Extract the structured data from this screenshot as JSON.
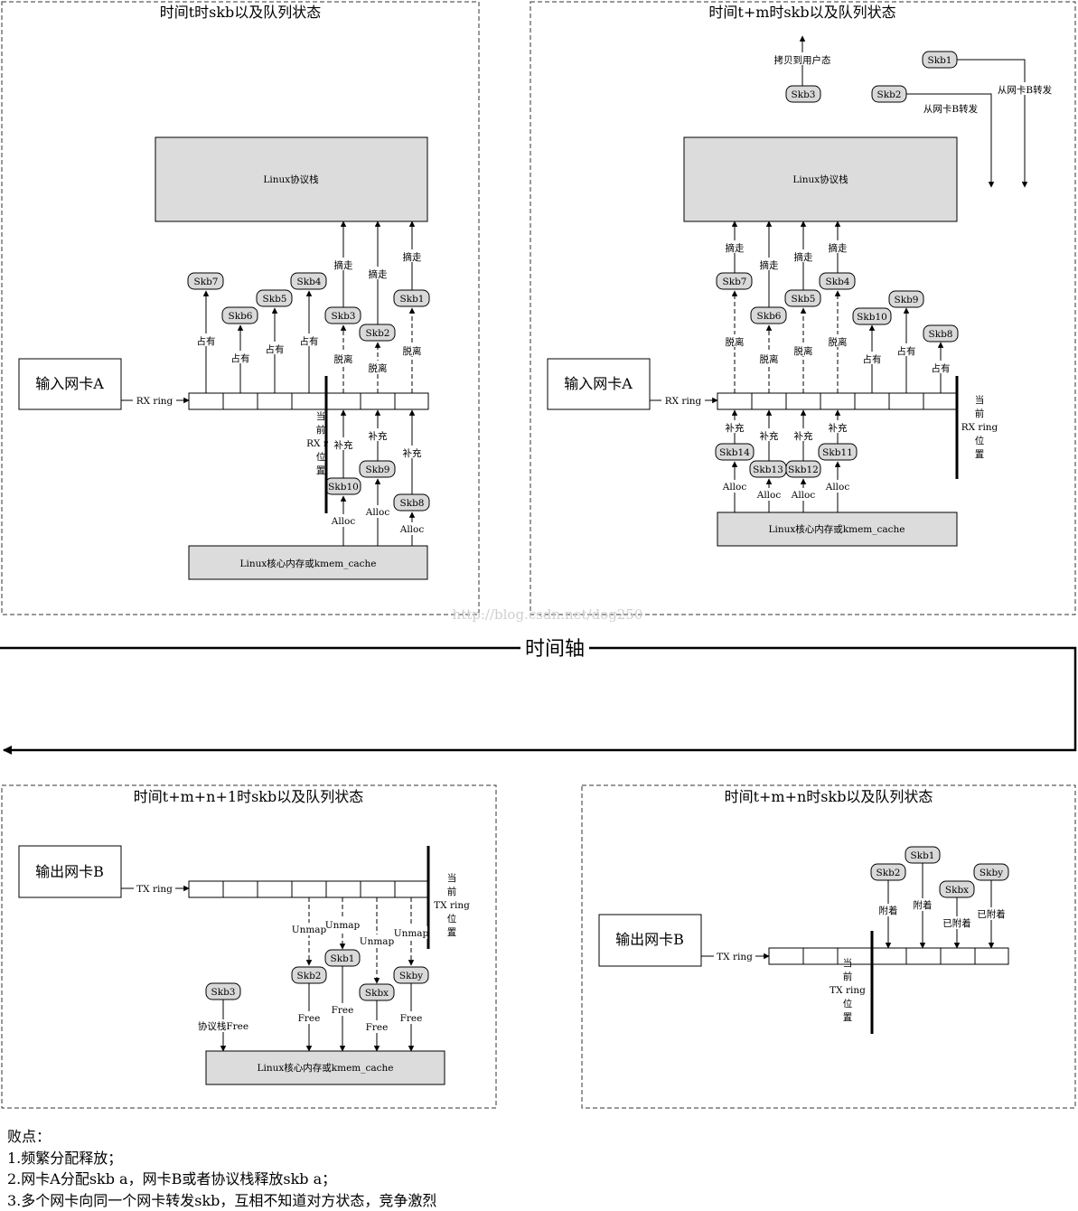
{
  "panels": {
    "p1": {
      "title": "时间t时skb以及队列状态",
      "nic": "输入网卡A",
      "ring_label": "RX ring",
      "stack": "Linux协议栈",
      "mem": "Linux核心内存或kmem_cache",
      "current": [
        "当",
        "前",
        "RX r",
        "位",
        "置"
      ],
      "skbs": {
        "s7": "Skb7",
        "s6": "Skb6",
        "s5": "Skb5",
        "s4": "Skb4",
        "s3": "Skb3",
        "s2": "Skb2",
        "s1": "Skb1",
        "s10": "Skb10",
        "s9": "Skb9",
        "s8": "Skb8"
      },
      "labels": {
        "occupy": "占有",
        "take": "摘走",
        "detach": "脱离",
        "fill": "补充",
        "alloc": "Alloc"
      }
    },
    "p2": {
      "title": "时间t+m时skb以及队列状态",
      "nic": "输入网卡A",
      "ring_label": "RX ring",
      "stack": "Linux协议栈",
      "mem": "Linux核心内存或kmem_cache",
      "copy_user": "拷贝到用户态",
      "from_b": "从网卡B转发",
      "current": [
        "当",
        "前",
        "RX ring",
        "位",
        "置"
      ],
      "skbs": {
        "s3": "Skb3",
        "s1": "Skb1",
        "s2": "Skb2",
        "s7": "Skb7",
        "s6": "Skb6",
        "s5": "Skb5",
        "s4": "Skb4",
        "s10": "Skb10",
        "s9": "Skb9",
        "s8": "Skb8",
        "s14": "Skb14",
        "s13": "Skb13",
        "s12": "Skb12",
        "s11": "Skb11"
      },
      "labels": {
        "occupy": "占有",
        "take": "摘走",
        "detach": "脱离",
        "fill": "补充",
        "alloc": "Alloc"
      }
    },
    "p3": {
      "title": "时间t+m+n+1时skb以及队列状态",
      "nic": "输出网卡B",
      "ring_label": "TX ring",
      "mem": "Linux核心内存或kmem_cache",
      "current": [
        "当",
        "前",
        "TX ring",
        "位",
        "置"
      ],
      "skbs": {
        "s3": "Skb3",
        "s2": "Skb2",
        "s1": "Skb1",
        "sx": "Skbx",
        "sy": "Skby"
      },
      "labels": {
        "unmap": "Unmap",
        "free": "Free",
        "stack_free": "协议栈Free"
      }
    },
    "p4": {
      "title": "时间t+m+n时skb以及队列状态",
      "nic": "输出网卡B",
      "ring_label": "TX ring",
      "current": [
        "当",
        "前",
        "TX ring",
        "位",
        "置"
      ],
      "skbs": {
        "s2": "Skb2",
        "s1": "Skb1",
        "sx": "Skbx",
        "sy": "Skby"
      },
      "labels": {
        "attach": "附着",
        "attached": "已附着"
      }
    }
  },
  "timeline": "时间轴",
  "watermark": "http://blog.csdn.net/dog250",
  "notes": [
    "败点：",
    "1.频繁分配释放；",
    "2.网卡A分配skb a，网卡B或者协议栈释放skb a；",
    "3.多个网卡向同一个网卡转发skb，互相不知道对方状态，竞争激烈"
  ],
  "colors": {
    "box_fill": "#dcdcdc",
    "pill_fill": "#d9d9d9",
    "line": "#000000",
    "watermark": "#cfcfcf"
  }
}
